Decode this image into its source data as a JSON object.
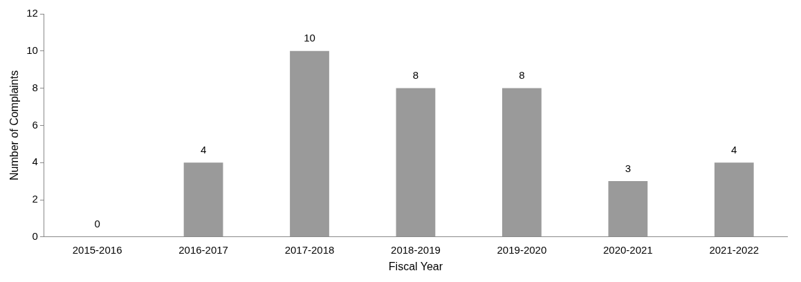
{
  "chart_data": {
    "type": "bar",
    "xlabel": "Fiscal Year",
    "ylabel": "Number of Complaints",
    "categories": [
      "2015-2016",
      "2016-2017",
      "2017-2018",
      "2018-2019",
      "2019-2020",
      "2020-2021",
      "2021-2022"
    ],
    "values": [
      0,
      4,
      10,
      8,
      8,
      3,
      4
    ],
    "color": "#9a9a9a",
    "ylim": [
      0,
      12
    ],
    "yticks": [
      0,
      2,
      4,
      6,
      8,
      10,
      12
    ],
    "grid": false,
    "legend": false,
    "data_labels": true
  }
}
